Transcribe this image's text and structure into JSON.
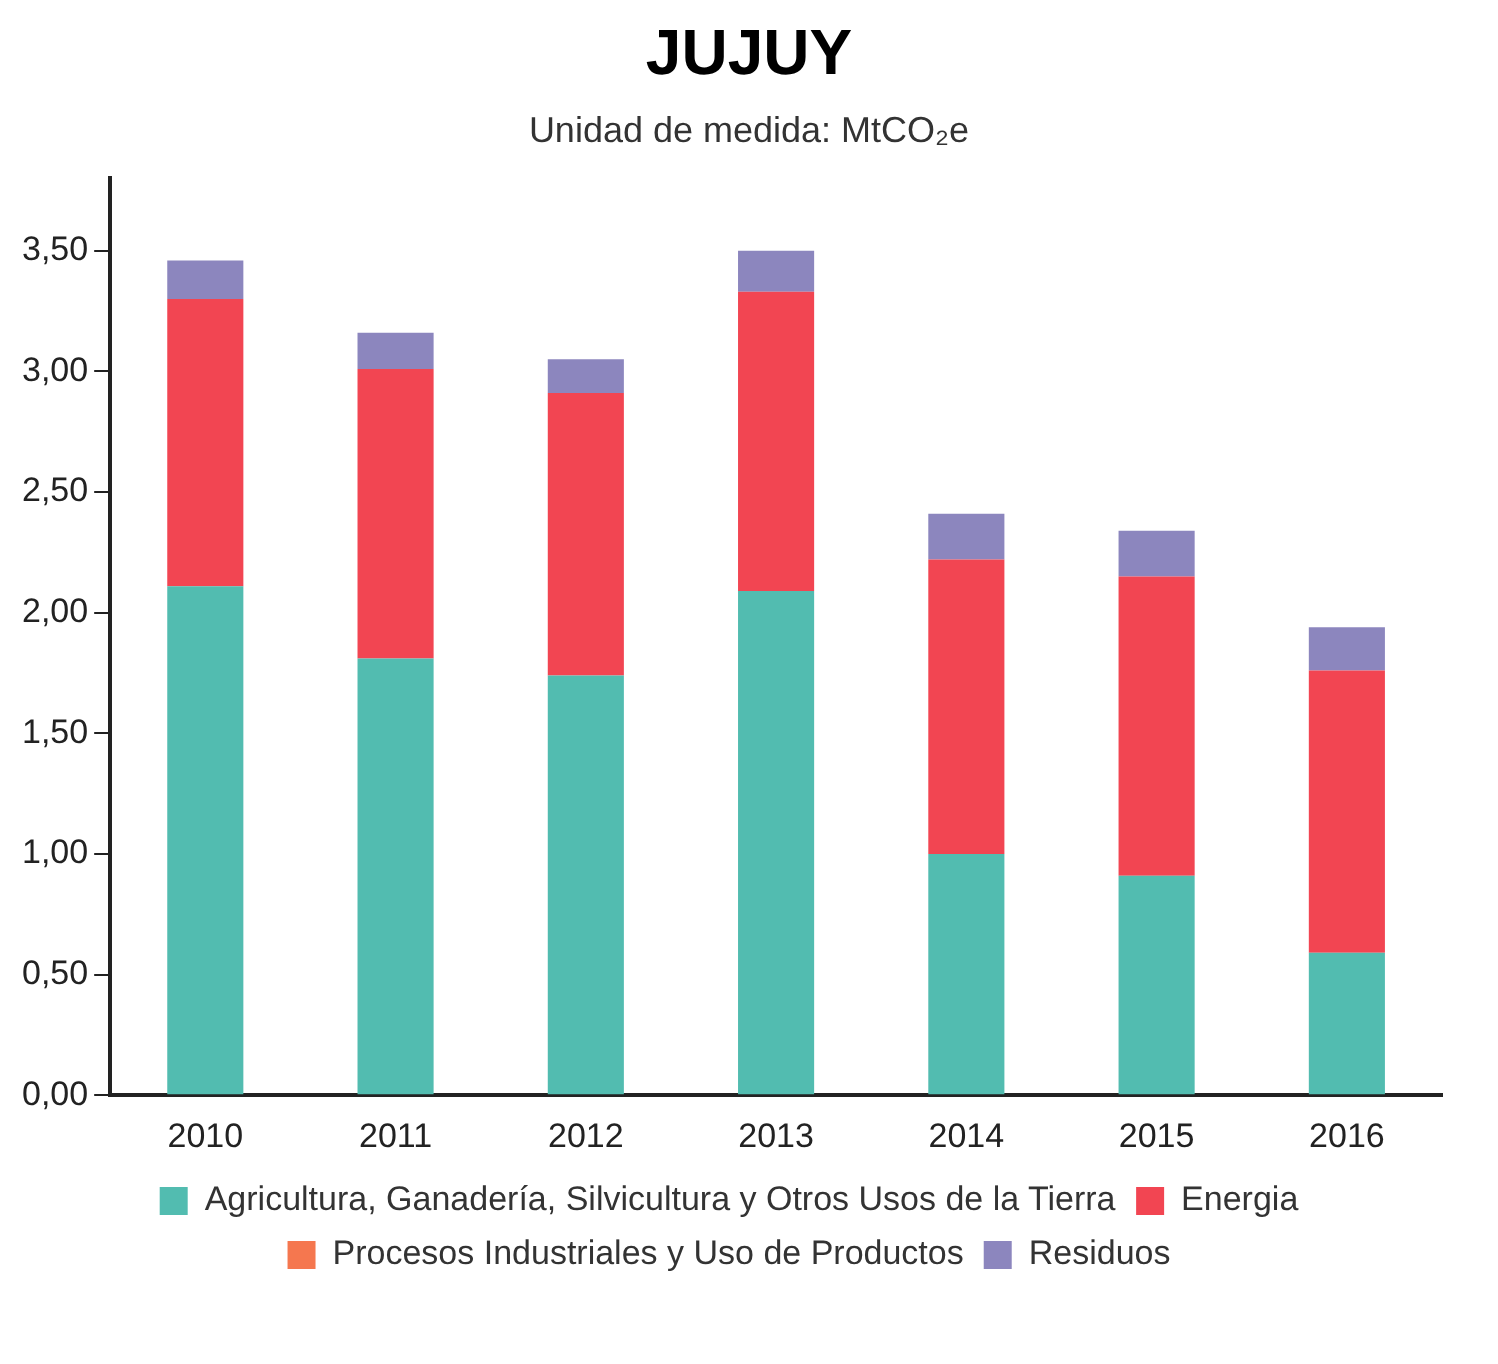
{
  "chart_data": {
    "type": "bar",
    "title": "JUJUY",
    "subtitle": "Unidad de medida: MtCO₂e",
    "categories": [
      "2010",
      "2011",
      "2012",
      "2013",
      "2014",
      "2015",
      "2016"
    ],
    "stacked": true,
    "series": [
      {
        "name": "Agricultura, Ganadería, Silvicultura y Otros Usos de la Tierra",
        "color": "#52bcb0",
        "values": [
          2.11,
          1.81,
          1.74,
          2.09,
          1.0,
          0.91,
          0.59
        ]
      },
      {
        "name": "Energia",
        "color": "#f24552",
        "values": [
          1.19,
          1.2,
          1.17,
          1.24,
          1.22,
          1.24,
          1.17
        ]
      },
      {
        "name": "Procesos Industriales y Uso de Productos",
        "color": "#f5774f",
        "values": [
          0,
          0,
          0,
          0,
          0,
          0,
          0
        ]
      },
      {
        "name": "Residuos",
        "color": "#8c86be",
        "values": [
          0.16,
          0.15,
          0.14,
          0.17,
          0.19,
          0.19,
          0.18
        ]
      }
    ],
    "ylim": [
      0,
      3.8
    ],
    "yticks": [
      {
        "value": 0,
        "label": "0,00"
      },
      {
        "value": 0.5,
        "label": "0,50"
      },
      {
        "value": 1,
        "label": "1,00"
      },
      {
        "value": 1.5,
        "label": "1,50"
      },
      {
        "value": 2,
        "label": "2,00"
      },
      {
        "value": 2.5,
        "label": "2,50"
      },
      {
        "value": 3,
        "label": "3,00"
      },
      {
        "value": 3.5,
        "label": "3,50"
      }
    ],
    "grid": false,
    "legend": "bottom"
  }
}
